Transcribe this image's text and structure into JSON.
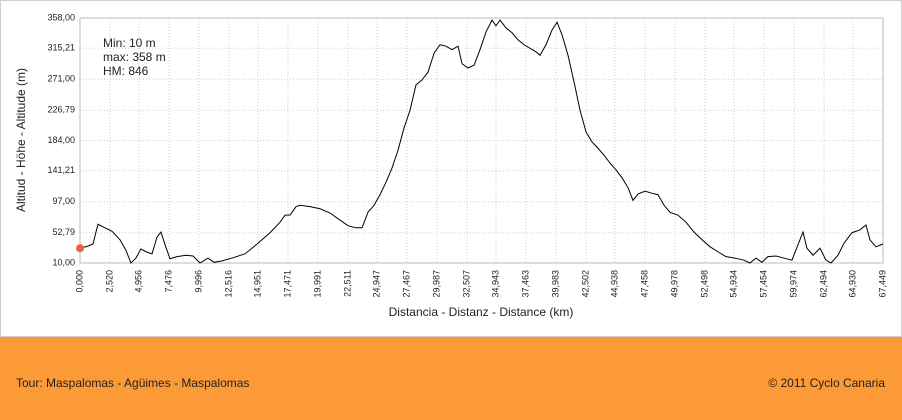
{
  "chart_data": {
    "type": "line",
    "x_label": "Distancia - Distanz - Distance (km)",
    "y_label": "Altitud - Höhe - Altitude (m)",
    "annotations": [
      "Min: 10 m",
      "max: 358 m",
      "HM: 846"
    ],
    "color": "#000000",
    "marker_color": "#e8643c",
    "grid": true,
    "x": [
      0,
      0.67,
      1.09,
      1.51,
      2.1,
      2.69,
      3.36,
      3.86,
      4.28,
      4.7,
      5.12,
      5.54,
      6.05,
      6.47,
      6.8,
      7.14,
      7.56,
      8.15,
      8.9,
      9.49,
      10.08,
      10.75,
      11.26,
      11.93,
      12.77,
      13.86,
      14.95,
      15.96,
      16.8,
      17.22,
      17.64,
      18.14,
      18.48,
      19.32,
      20.16,
      21.0,
      21.84,
      22.51,
      23.18,
      23.69,
      24.19,
      24.7,
      25.2,
      25.71,
      26.21,
      26.71,
      27.22,
      27.72,
      28.22,
      28.73,
      29.23,
      29.74,
      30.24,
      30.74,
      31.25,
      31.75,
      32.09,
      32.59,
      33.1,
      33.6,
      34.1,
      34.61,
      34.94,
      35.28,
      35.78,
      36.29,
      36.79,
      37.3,
      37.8,
      38.3,
      38.64,
      39.14,
      39.65,
      40.07,
      40.49,
      40.99,
      41.5,
      42.0,
      42.51,
      43.01,
      43.51,
      44.02,
      44.52,
      45.03,
      45.53,
      46.03,
      46.45,
      46.87,
      47.46,
      48.05,
      48.55,
      49.06,
      49.56,
      50.23,
      50.9,
      51.57,
      52.25,
      52.92,
      53.59,
      54.26,
      55.01,
      55.77,
      56.27,
      56.78,
      57.28,
      57.78,
      58.46,
      59.13,
      59.8,
      60.31,
      60.73,
      61.06,
      61.57,
      62.16,
      62.66,
      63.08,
      63.67,
      64.17,
      64.84,
      65.51,
      66.02,
      66.35,
      66.86,
      67.449
    ],
    "values": [
      31,
      34,
      37,
      65,
      60,
      55,
      43,
      28,
      10,
      17,
      30,
      26,
      23,
      47,
      54,
      36,
      16,
      19,
      21,
      20,
      10,
      17,
      11,
      13,
      17,
      23,
      38,
      53,
      68,
      78,
      78,
      90,
      92,
      90,
      87,
      81,
      71,
      63,
      60,
      60,
      82,
      92,
      107,
      125,
      145,
      170,
      202,
      227,
      263,
      270,
      281,
      308,
      320,
      318,
      313,
      318,
      293,
      287,
      291,
      313,
      338,
      355,
      347,
      355,
      344,
      337,
      327,
      320,
      315,
      310,
      305,
      320,
      341,
      352,
      334,
      305,
      267,
      227,
      196,
      182,
      173,
      163,
      152,
      142,
      131,
      117,
      99,
      108,
      112,
      109,
      107,
      92,
      82,
      78,
      68,
      54,
      43,
      33,
      26,
      19,
      17,
      14,
      10,
      17,
      11,
      19,
      20,
      17,
      14,
      36,
      54,
      31,
      21,
      31,
      14,
      10,
      21,
      38,
      53,
      57,
      64,
      43,
      33,
      37
    ],
    "xlim": [
      0,
      67.449
    ],
    "ylim": [
      10,
      358
    ],
    "yticks": [
      {
        "value": 10,
        "label": "10,00"
      },
      {
        "value": 52.79,
        "label": "52,79"
      },
      {
        "value": 97,
        "label": "97,00"
      },
      {
        "value": 141.21,
        "label": "141,21"
      },
      {
        "value": 184,
        "label": "184,00"
      },
      {
        "value": 226.79,
        "label": "226,79"
      },
      {
        "value": 271,
        "label": "271,00"
      },
      {
        "value": 315.21,
        "label": "315,21"
      },
      {
        "value": 358,
        "label": "358,00"
      }
    ],
    "xticks": [
      {
        "value": 0,
        "label": "0,000"
      },
      {
        "value": 2.52,
        "label": "2,520"
      },
      {
        "value": 4.956,
        "label": "4,956"
      },
      {
        "value": 7.476,
        "label": "7,476"
      },
      {
        "value": 9.996,
        "label": "9,996"
      },
      {
        "value": 12.516,
        "label": "12,516"
      },
      {
        "value": 14.951,
        "label": "14,951"
      },
      {
        "value": 17.471,
        "label": "17,471"
      },
      {
        "value": 19.991,
        "label": "19,991"
      },
      {
        "value": 22.511,
        "label": "22,511"
      },
      {
        "value": 24.947,
        "label": "24,947"
      },
      {
        "value": 27.467,
        "label": "27,467"
      },
      {
        "value": 29.987,
        "label": "29,987"
      },
      {
        "value": 32.507,
        "label": "32,507"
      },
      {
        "value": 34.943,
        "label": "34,943"
      },
      {
        "value": 37.463,
        "label": "37,463"
      },
      {
        "value": 39.983,
        "label": "39,983"
      },
      {
        "value": 42.502,
        "label": "42,502"
      },
      {
        "value": 44.938,
        "label": "44,938"
      },
      {
        "value": 47.458,
        "label": "47,458"
      },
      {
        "value": 49.978,
        "label": "49,978"
      },
      {
        "value": 52.498,
        "label": "52,498"
      },
      {
        "value": 54.934,
        "label": "54,934"
      },
      {
        "value": 57.454,
        "label": "57,454"
      },
      {
        "value": 59.974,
        "label": "59,974"
      },
      {
        "value": 62.494,
        "label": "62,494"
      },
      {
        "value": 64.93,
        "label": "64,930"
      },
      {
        "value": 67.449,
        "label": "67,449"
      }
    ]
  },
  "footer": {
    "tour": "Tour: Maspalomas - Agüimes - Maspalomas",
    "copyright": "© 2011 Cyclo Canaria"
  }
}
